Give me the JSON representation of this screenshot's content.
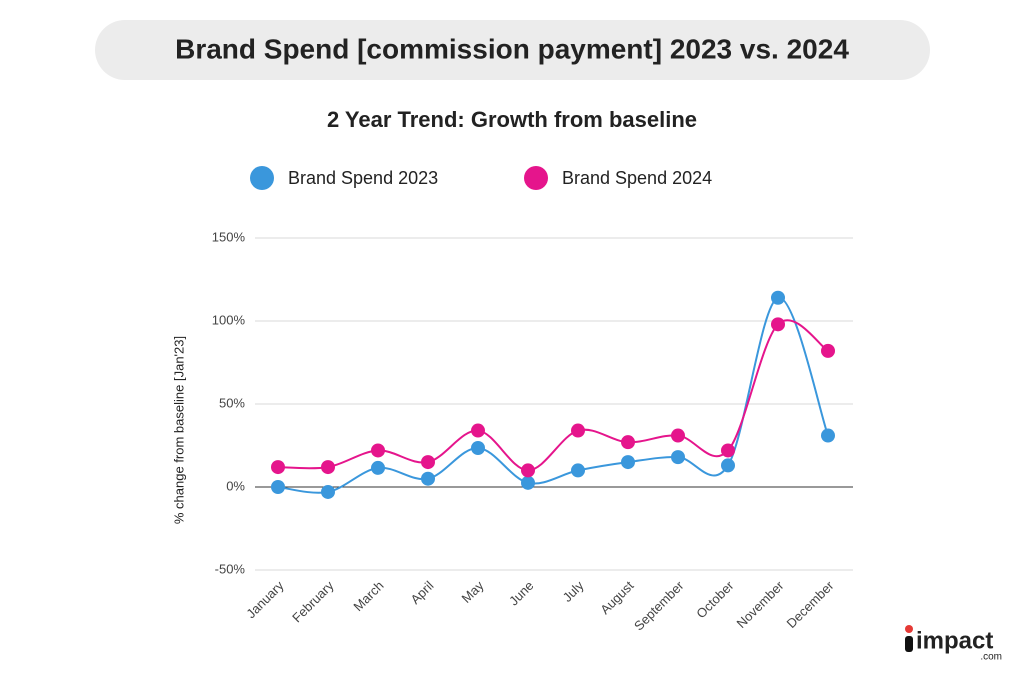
{
  "chart_data": {
    "type": "line",
    "title": "Brand Spend [commission payment] 2023 vs. 2024",
    "subtitle": "2 Year Trend: Growth from baseline",
    "y_label": "% change from baseline [Jan'23]",
    "categories": [
      "January",
      "February",
      "March",
      "April",
      "May",
      "June",
      "July",
      "August",
      "September",
      "October",
      "November",
      "December"
    ],
    "series": [
      {
        "name": "Brand Spend 2023",
        "color": "#3a97dc",
        "values": [
          0,
          -3,
          11.5,
          5,
          23.5,
          2.5,
          10,
          15,
          18,
          13,
          114,
          31
        ]
      },
      {
        "name": "Brand Spend 2024",
        "color": "#e5158c",
        "values": [
          12,
          12,
          22,
          15,
          34,
          10,
          34,
          27,
          31,
          22,
          98,
          82
        ]
      }
    ],
    "ylim": [
      -50,
      150
    ],
    "yticks": [
      {
        "value": -50,
        "label": "-50%"
      },
      {
        "value": 0,
        "label": "0%"
      },
      {
        "value": 50,
        "label": "50%"
      },
      {
        "value": 100,
        "label": "100%"
      },
      {
        "value": 150,
        "label": "150%"
      }
    ],
    "grid": true,
    "smooth": true,
    "legend": "top"
  },
  "logo": {
    "name": "impact",
    "suffix": ".com"
  }
}
